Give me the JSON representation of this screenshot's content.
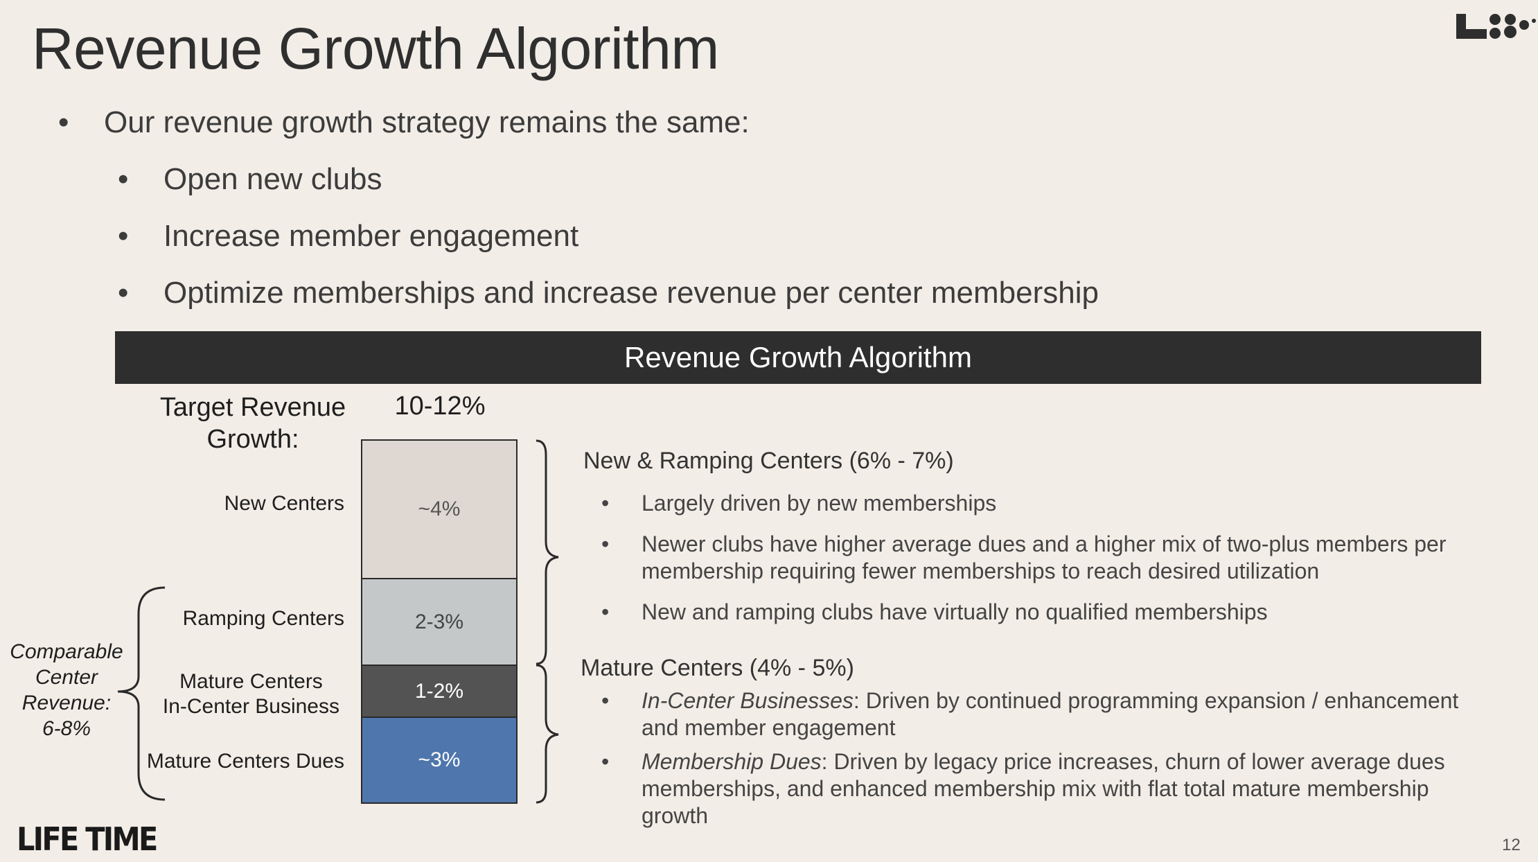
{
  "title": "Revenue Growth Algorithm",
  "intro": {
    "lead": "Our revenue growth strategy remains the same:",
    "items": [
      "Open new clubs",
      "Increase member engagement",
      "Optimize memberships and increase revenue per center membership"
    ],
    "bullet_glyph": "•"
  },
  "banner": "Revenue Growth Algorithm",
  "target": {
    "label_line1": "Target Revenue",
    "label_line2": "Growth:",
    "value": "10-12%"
  },
  "stack": [
    {
      "label": "New Centers",
      "value": "~4%",
      "color": "#dfd8d2",
      "text_color": "#555555"
    },
    {
      "label": "Ramping Centers",
      "value": "2-3%",
      "color": "#c4c8c8",
      "text_color": "#444444"
    },
    {
      "label_line1": "Mature Centers",
      "label_line2": "In-Center Business",
      "value": "1-2%",
      "color": "#535353",
      "text_color": "#ffffff"
    },
    {
      "label": "Mature Centers Dues",
      "value": "~3%",
      "color": "#4f76ad",
      "text_color": "#ffffff"
    }
  ],
  "comparable": {
    "line1": "Comparable",
    "line2": "Center",
    "line3": "Revenue:",
    "line4": "6-8%"
  },
  "new_ramping": {
    "heading": "New & Ramping Centers (6% - 7%)",
    "bullets": [
      "Largely driven by new memberships",
      "Newer clubs have higher average dues and a higher mix of two-plus members per membership requiring fewer memberships to reach desired utilization",
      "New and ramping clubs have virtually no qualified memberships"
    ]
  },
  "mature": {
    "heading": "Mature Centers (4% - 5%)",
    "bullets": [
      {
        "em": "In-Center Businesses",
        "rest": ": Driven by continued programming expansion / enhancement and member engagement"
      },
      {
        "em": "Membership Dues",
        "rest": ": Driven by legacy price increases,  churn of lower average dues memberships, and enhanced membership mix with flat total mature membership growth"
      }
    ]
  },
  "footer": {
    "logo": "LIFE TIME",
    "page_number": "12"
  },
  "colors": {
    "background": "#f3ede7",
    "banner": "#2e2e2e",
    "dues_blue": "#4f76ad"
  }
}
